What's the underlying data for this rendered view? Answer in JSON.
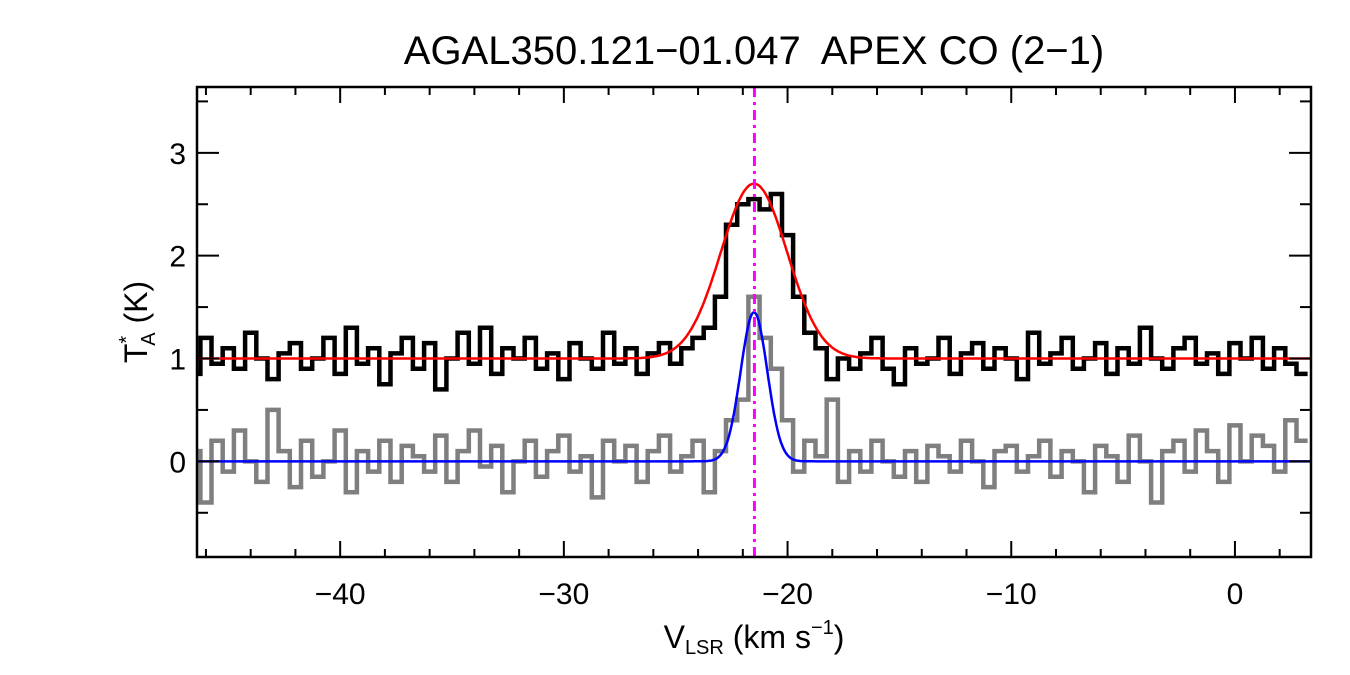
{
  "chart_data": {
    "type": "line",
    "title": "AGAL350.121−01.047  APEX CO (2−1)",
    "xlabel": {
      "main": "V",
      "sub": "LSR",
      "rest": " (km s",
      "sup": "−1",
      "end": ")"
    },
    "ylabel": {
      "main": "T",
      "sup": "*",
      "sub": "A",
      "rest": " (K)"
    },
    "xlim": [
      -46.4,
      3.4
    ],
    "ylim": [
      -0.93,
      3.64
    ],
    "xticks": [
      -40,
      -30,
      -20,
      -10,
      0
    ],
    "xtick_labels": [
      "−40",
      "−30",
      "−20",
      "−10",
      "0"
    ],
    "yticks": [
      0,
      1,
      2,
      3
    ],
    "ytick_labels": [
      "0",
      "1",
      "2",
      "3"
    ],
    "x_minor_step": 2,
    "y_minor_step": 0.5,
    "grid": false,
    "channel_start": -46.5,
    "channel_width": 0.5,
    "series": [
      {
        "style": "histogram",
        "color": "#000000",
        "values": [
          0.85,
          1.2,
          0.95,
          1.1,
          0.9,
          1.25,
          1.0,
          0.8,
          1.05,
          1.15,
          0.9,
          1.0,
          1.2,
          0.85,
          1.3,
          0.95,
          1.1,
          0.75,
          1.05,
          1.2,
          0.9,
          1.15,
          0.7,
          1.0,
          1.25,
          0.95,
          1.3,
          0.85,
          1.1,
          1.0,
          1.2,
          0.9,
          1.05,
          0.8,
          1.15,
          1.0,
          0.9,
          1.25,
          0.95,
          1.1,
          0.85,
          1.05,
          1.15,
          0.95,
          1.1,
          1.2,
          1.3,
          1.6,
          2.3,
          2.5,
          2.55,
          2.45,
          2.6,
          2.2,
          1.6,
          1.25,
          1.1,
          0.8,
          1.0,
          0.9,
          1.05,
          1.2,
          0.9,
          0.75,
          1.1,
          0.95,
          1.0,
          1.2,
          0.85,
          1.05,
          1.15,
          0.9,
          1.1,
          1.0,
          0.8,
          1.25,
          0.95,
          1.05,
          1.2,
          0.9,
          1.0,
          1.15,
          0.85,
          1.1,
          0.95,
          1.3,
          1.0,
          0.9,
          1.1,
          1.2,
          0.95,
          1.05,
          0.85,
          1.15,
          1.0,
          1.2,
          0.9,
          1.1,
          0.95,
          0.85
        ]
      },
      {
        "style": "histogram",
        "color": "#7f7f7f",
        "values": [
          0.1,
          -0.4,
          0.2,
          -0.1,
          0.3,
          0.0,
          -0.2,
          0.5,
          0.1,
          -0.25,
          0.2,
          -0.15,
          0.0,
          0.3,
          -0.3,
          0.1,
          -0.1,
          0.2,
          -0.2,
          0.15,
          0.05,
          -0.1,
          0.25,
          -0.2,
          0.1,
          0.3,
          -0.05,
          0.15,
          -0.3,
          0.0,
          0.2,
          -0.15,
          0.1,
          0.25,
          -0.1,
          0.05,
          -0.35,
          0.2,
          0.0,
          0.15,
          -0.2,
          0.1,
          0.25,
          -0.1,
          0.05,
          0.2,
          -0.3,
          0.1,
          0.4,
          0.6,
          1.6,
          1.2,
          0.9,
          0.4,
          -0.1,
          0.2,
          0.05,
          0.6,
          -0.2,
          0.1,
          -0.1,
          0.2,
          0.0,
          -0.15,
          0.1,
          -0.2,
          0.15,
          0.05,
          -0.1,
          0.2,
          0.0,
          -0.25,
          0.1,
          0.15,
          -0.1,
          0.05,
          0.2,
          -0.15,
          0.1,
          0.0,
          -0.3,
          0.15,
          0.05,
          -0.2,
          0.25,
          0.0,
          -0.4,
          0.1,
          0.2,
          -0.1,
          0.3,
          0.1,
          -0.2,
          0.35,
          0.0,
          0.25,
          0.15,
          -0.1,
          0.4,
          0.2
        ]
      }
    ],
    "fits": [
      {
        "model": "gaussian",
        "color": "#ff0000",
        "offset": 1.0,
        "amplitude": 1.7,
        "center": -21.5,
        "fwhm": 3.5
      },
      {
        "model": "gaussian",
        "color": "#0000ff",
        "offset": 0.0,
        "amplitude": 1.45,
        "center": -21.5,
        "fwhm": 1.4
      }
    ],
    "vline": {
      "x": -21.48,
      "color": "#ff00ff",
      "style": "dash-dot"
    }
  }
}
